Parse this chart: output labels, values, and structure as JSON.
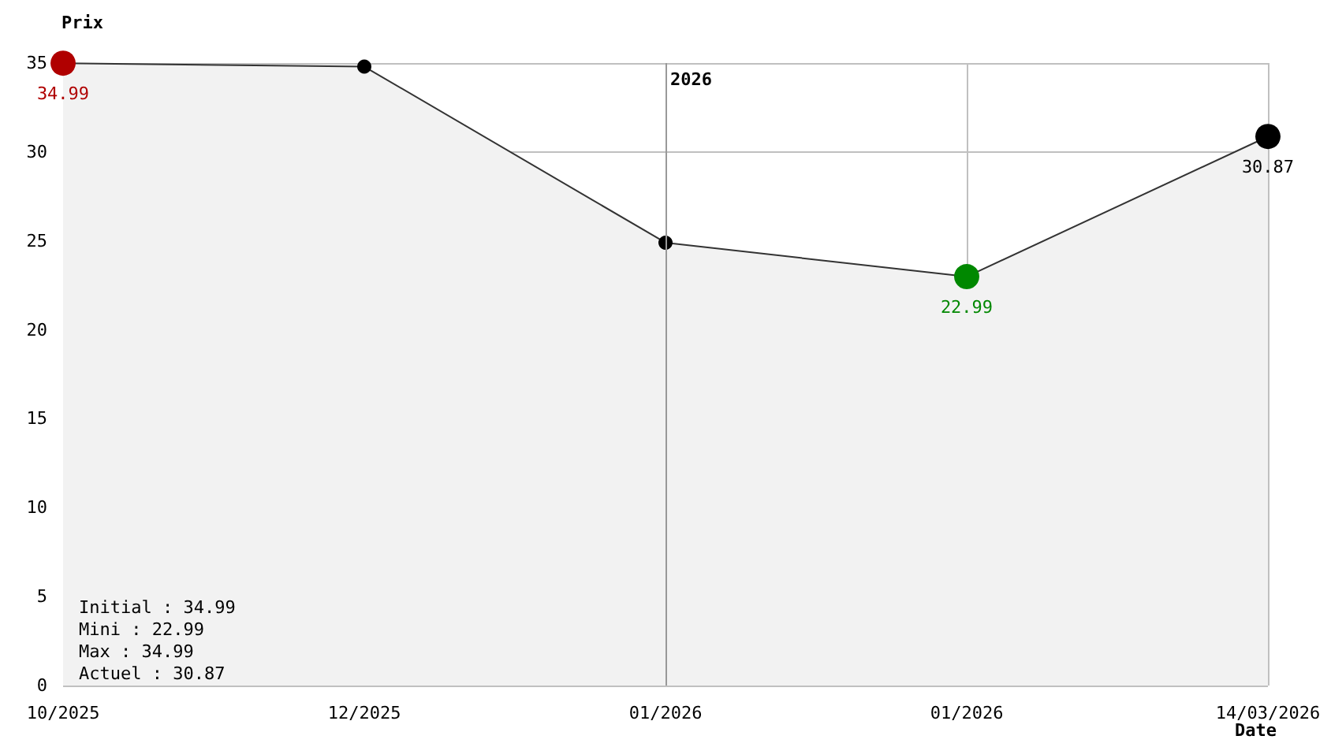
{
  "chart_data": {
    "type": "area",
    "xlabel": "Date",
    "ylabel": "Prix",
    "categories": [
      "10/2025",
      "12/2025",
      "01/2026",
      "01/2026",
      "14/03/2026"
    ],
    "series": [
      {
        "color": "#333333",
        "values": [
          34.99,
          34.8,
          24.9,
          22.99,
          30.87
        ],
        "colors": [
          "#b00000",
          "#000000",
          "#000000",
          "#008800",
          "#000000"
        ],
        "value_labels": [
          "34.99",
          null,
          null,
          "22.99",
          "30.87"
        ]
      }
    ],
    "ylim": [
      0,
      35
    ],
    "yticks": [
      0,
      5,
      10,
      15,
      20,
      25,
      30,
      35
    ],
    "grid": true,
    "marker": "circle",
    "ref_lines": [
      {
        "axis": "x",
        "value": "01/2026",
        "label": "2026",
        "color": "#999999"
      }
    ],
    "annotations": [
      "Initial : 34.99",
      "Mini : 22.99",
      "Max : 34.99",
      "Actuel : 30.87"
    ]
  }
}
